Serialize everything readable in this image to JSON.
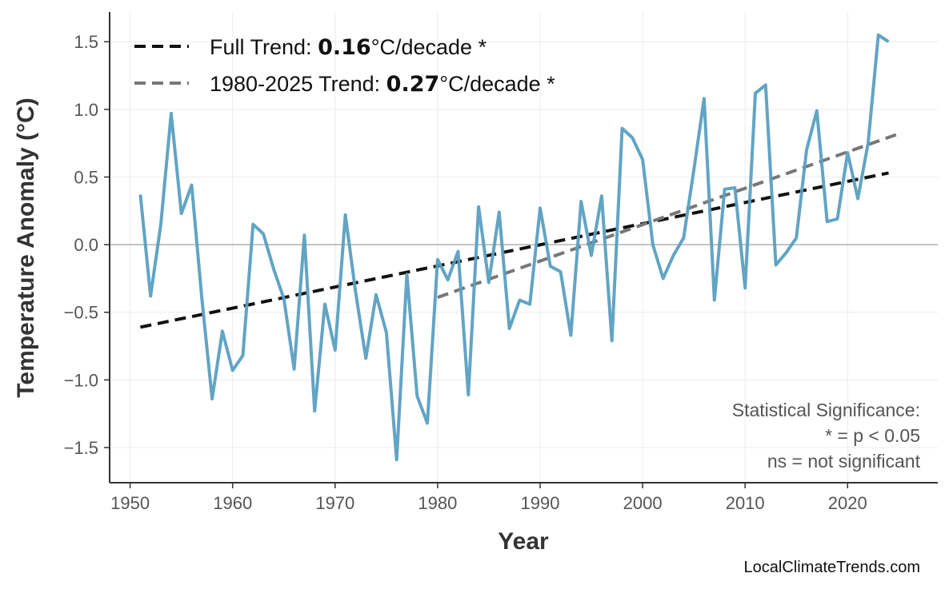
{
  "chart_data": {
    "type": "line",
    "title": "",
    "xlabel": "Year",
    "ylabel": "Temperature Anomaly (°C)",
    "xlim": [
      1948,
      2028.8
    ],
    "ylim": [
      -1.76,
      1.72
    ],
    "xticks": [
      1950,
      1960,
      1970,
      1980,
      1990,
      2000,
      2010,
      2020
    ],
    "yticks": [
      -1.5,
      -1.0,
      -0.5,
      0.0,
      0.5,
      1.0,
      1.5
    ],
    "ytick_labels": [
      "−1.5",
      "−1.0",
      "−0.5",
      "0.0",
      "0.5",
      "1.0",
      "1.5"
    ],
    "grid": true,
    "legend_placement": "top-left",
    "colors": {
      "series": "#5a9fc0",
      "full_trend": "#111111",
      "recent_trend": "#777777",
      "zero_line": "#b0b0b0"
    },
    "x": [
      1951,
      1952,
      1953,
      1954,
      1955,
      1956,
      1957,
      1958,
      1959,
      1960,
      1961,
      1962,
      1963,
      1964,
      1965,
      1966,
      1967,
      1968,
      1969,
      1970,
      1971,
      1972,
      1973,
      1974,
      1975,
      1976,
      1977,
      1978,
      1979,
      1980,
      1981,
      1982,
      1983,
      1984,
      1985,
      1986,
      1987,
      1988,
      1989,
      1990,
      1991,
      1992,
      1993,
      1994,
      1995,
      1996,
      1997,
      1998,
      1999,
      2000,
      2001,
      2002,
      2003,
      2004,
      2005,
      2006,
      2007,
      2008,
      2009,
      2010,
      2011,
      2012,
      2013,
      2014,
      2015,
      2016,
      2017,
      2018,
      2019,
      2020,
      2021,
      2022,
      2023,
      2024
    ],
    "values": [
      0.37,
      -0.38,
      0.15,
      0.97,
      0.23,
      0.44,
      -0.4,
      -1.14,
      -0.64,
      -0.93,
      -0.82,
      0.15,
      0.08,
      -0.18,
      -0.4,
      -0.92,
      0.07,
      -1.23,
      -0.44,
      -0.78,
      0.22,
      -0.35,
      -0.84,
      -0.37,
      -0.65,
      -1.59,
      -0.22,
      -1.12,
      -1.32,
      -0.11,
      -0.26,
      -0.05,
      -1.11,
      0.28,
      -0.28,
      0.24,
      -0.62,
      -0.41,
      -0.44,
      0.27,
      -0.16,
      -0.2,
      -0.67,
      0.32,
      -0.08,
      0.36,
      -0.71,
      0.86,
      0.79,
      0.63,
      0.0,
      -0.25,
      -0.08,
      0.05,
      0.55,
      1.08,
      -0.41,
      0.41,
      0.42,
      -0.32,
      1.12,
      1.18,
      -0.15,
      -0.06,
      0.05,
      0.7,
      0.99,
      0.17,
      0.19,
      0.68,
      0.34,
      0.75,
      1.55,
      1.5
    ],
    "trends": [
      {
        "name": "Full Trend",
        "x": [
          1951,
          2024
        ],
        "y": [
          -0.61,
          0.53
        ],
        "rate": "0.16",
        "unit": "°C/decade",
        "sig": " *",
        "prefix": "Full Trend: "
      },
      {
        "name": "1980-2025 Trend",
        "x": [
          1980,
          2025
        ],
        "y": [
          -0.39,
          0.82
        ],
        "rate": "0.27",
        "unit": "°C/decade",
        "sig": " *",
        "prefix": "1980-2025 Trend: "
      }
    ],
    "annotations": [
      "Statistical Significance:",
      "* = p < 0.05",
      "ns = not significant"
    ],
    "source": "LocalClimateTrends.com"
  }
}
